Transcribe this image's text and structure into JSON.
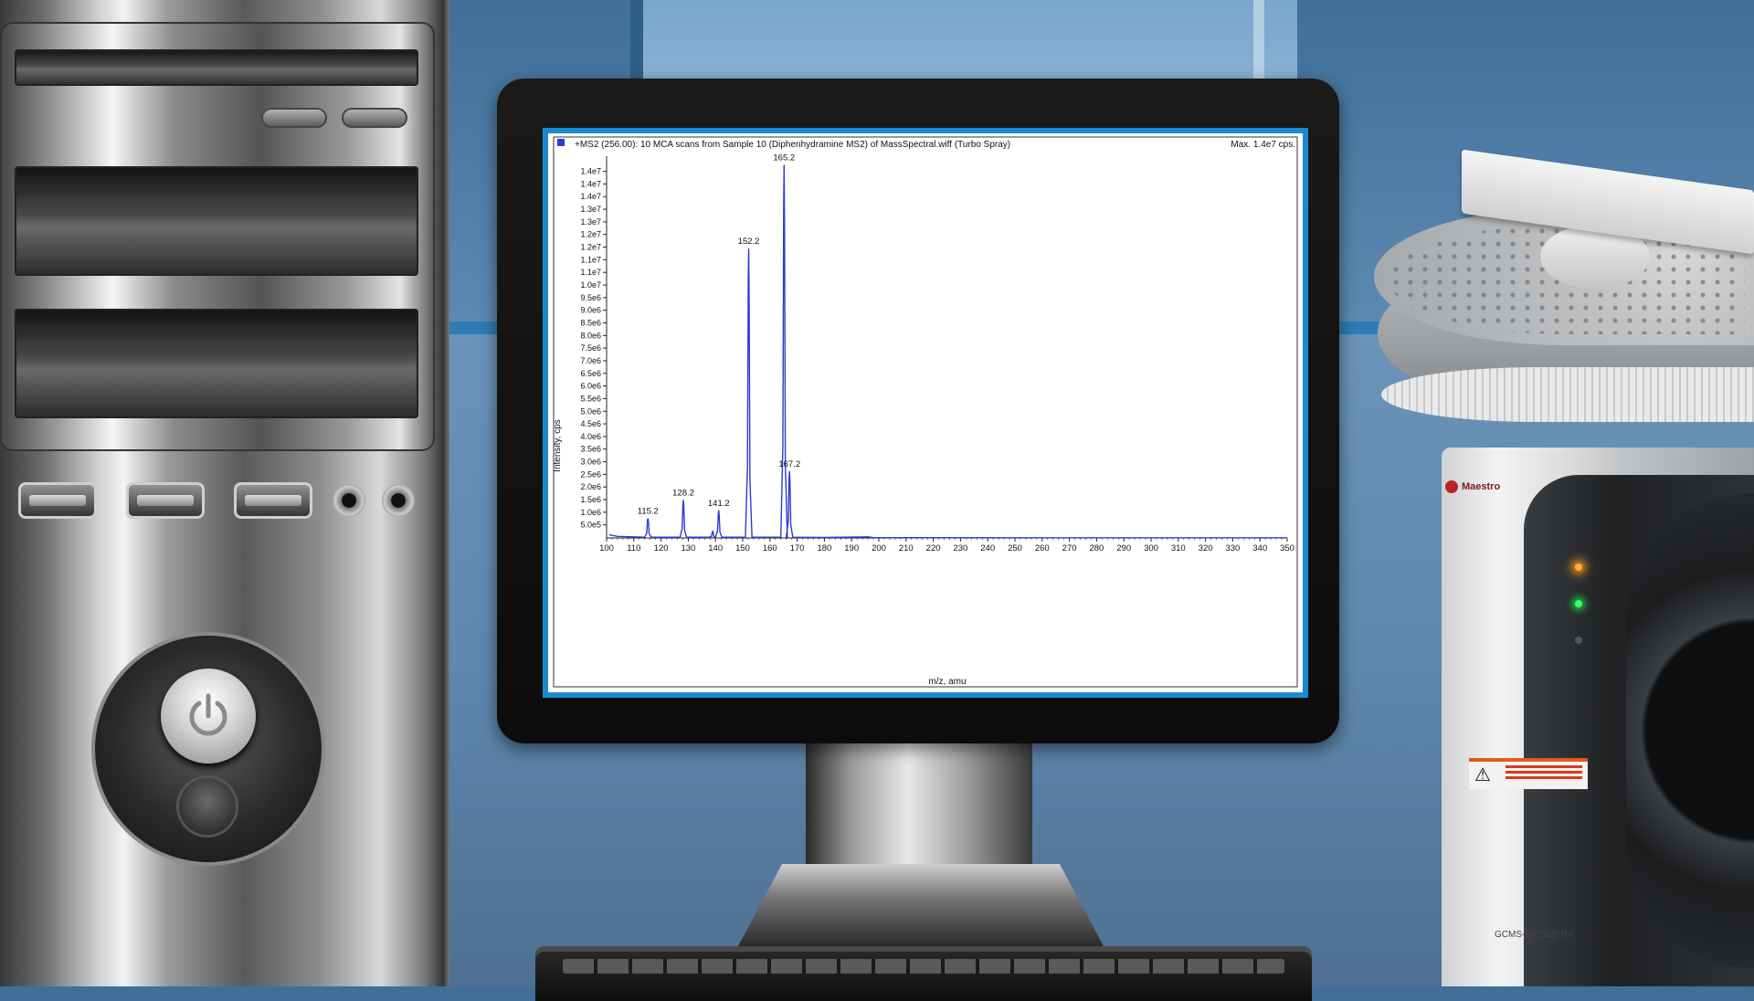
{
  "colors": {
    "spectrum_line": "#2b3bd8",
    "screen_border": "#1a8ad0",
    "led_orange": "#ffae3a",
    "led_green": "#3aff6a"
  },
  "icons": {
    "power": "power-icon",
    "series_marker": "square-marker-icon"
  },
  "chart": {
    "header": "+MS2 (256.00): 10 MCA scans from Sample 10 (Diphenhydramine MS2) of MassSpectral.wiff (Turbo Spray)",
    "max_label": "Max. 1.4e7 cps.",
    "xlabel": "m/z, amu",
    "ylabel": "Intensity, cps",
    "y_ticks": [
      "5.0e5",
      "1.0e6",
      "1.5e6",
      "2.0e6",
      "2.5e6",
      "3.0e6",
      "3.5e6",
      "4.0e6",
      "4.5e6",
      "5.0e6",
      "5.5e6",
      "6.0e6",
      "6.5e6",
      "7.0e6",
      "7.5e6",
      "8.0e6",
      "8.5e6",
      "9.0e6",
      "9.5e6",
      "1.0e7",
      "1.1e7",
      "1.1e7",
      "1.2e7",
      "1.2e7",
      "1.3e7",
      "1.3e7",
      "1.4e7",
      "1.4e7",
      "1.4e7"
    ],
    "x_ticks": [
      "100",
      "110",
      "120",
      "130",
      "140",
      "150",
      "160",
      "170",
      "180",
      "190",
      "200",
      "210",
      "220",
      "230",
      "240",
      "250",
      "260",
      "270",
      "280",
      "290",
      "300",
      "310",
      "320",
      "330",
      "340",
      "350"
    ]
  },
  "chart_data": {
    "type": "line",
    "title": "+MS2 (256.00): 10 MCA scans from Sample 10 (Diphenhydramine MS2) of MassSpectral.wiff (Turbo Spray)",
    "xlabel": "m/z, amu",
    "ylabel": "Intensity, cps",
    "xlim": [
      100,
      350
    ],
    "ylim": [
      0,
      14300000
    ],
    "grid": false,
    "series": [
      {
        "values": [
          [
            115.2,
            750000
          ],
          [
            128.2,
            1450000
          ],
          [
            139.0,
            250000
          ],
          [
            141.2,
            1050000
          ],
          [
            152.2,
            11050000
          ],
          [
            165.2,
            14250000
          ],
          [
            167.2,
            2550000
          ]
        ]
      }
    ],
    "peak_labels": [
      "115.2",
      "128.2",
      "141.2",
      "152.2",
      "165.2",
      "167.2"
    ]
  },
  "instrument": {
    "brand": "Maestro",
    "model": "GCMS-QP2020 NX"
  }
}
